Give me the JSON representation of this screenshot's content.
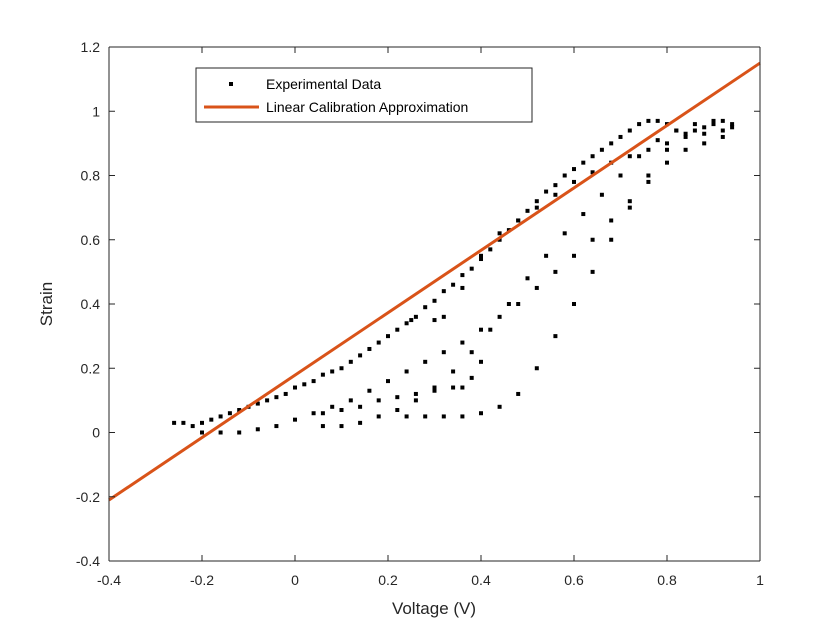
{
  "chart_data": {
    "type": "scatter",
    "xlabel": "Voltage (V)",
    "ylabel": "Strain",
    "xlim": [
      -0.4,
      1.0
    ],
    "ylim": [
      -0.4,
      1.2
    ],
    "xticks": [
      "-0.4",
      "-0.2",
      "0",
      "0.2",
      "0.4",
      "0.6",
      "0.8",
      "1"
    ],
    "yticks": [
      "-0.4",
      "-0.2",
      "0",
      "0.2",
      "0.4",
      "0.6",
      "0.8",
      "1",
      "1.2"
    ],
    "grid": false,
    "legend": {
      "placement": "top-left"
    },
    "series": [
      {
        "name": "Experimental Data",
        "kind": "scatter",
        "marker": "square",
        "color": "#000000",
        "x": [
          -0.26,
          -0.24,
          -0.22,
          -0.2,
          -0.18,
          -0.16,
          -0.14,
          -0.12,
          -0.1,
          -0.08,
          -0.06,
          -0.04,
          -0.02,
          0.0,
          0.02,
          0.04,
          0.06,
          0.08,
          0.1,
          0.12,
          0.14,
          0.16,
          0.18,
          0.2,
          0.22,
          0.24,
          0.26,
          0.28,
          0.3,
          0.32,
          0.34,
          0.36,
          0.38,
          0.4,
          0.42,
          0.44,
          0.46,
          0.48,
          0.5,
          0.52,
          0.54,
          0.56,
          0.58,
          0.6,
          0.62,
          0.64,
          0.66,
          0.68,
          0.7,
          0.72,
          0.74,
          0.76,
          0.78,
          0.8,
          0.82,
          0.84,
          0.86,
          0.88,
          0.9,
          0.92,
          0.94,
          -0.2,
          -0.16,
          -0.12,
          -0.08,
          -0.04,
          0.0,
          0.04,
          0.08,
          0.12,
          0.16,
          0.2,
          0.24,
          0.28,
          0.32,
          0.36,
          0.4,
          0.44,
          0.48,
          0.52,
          0.56,
          0.6,
          0.64,
          0.68,
          0.72,
          0.76,
          0.8,
          0.84,
          0.88,
          0.92,
          0.06,
          0.1,
          0.14,
          0.18,
          0.22,
          0.26,
          0.3,
          0.34,
          0.36,
          0.38,
          0.4,
          0.3,
          0.25,
          0.32,
          0.36,
          0.4,
          0.44,
          0.48,
          0.52,
          0.56,
          0.6,
          0.64,
          0.68,
          0.72,
          0.76,
          0.8,
          0.84,
          0.88,
          0.92,
          0.24,
          0.28,
          0.32,
          0.36,
          0.4,
          0.44,
          0.48,
          0.52,
          0.56,
          0.6,
          0.64,
          0.68,
          0.72,
          0.76,
          0.8,
          0.06,
          0.1,
          0.14,
          0.18,
          0.22,
          0.26,
          0.3,
          0.34,
          0.38,
          0.42,
          0.46,
          0.5,
          0.54,
          0.58,
          0.62,
          0.66,
          0.7,
          0.74,
          0.78,
          0.82,
          0.86,
          0.9,
          0.94
        ],
        "y": [
          0.03,
          0.03,
          0.02,
          0.03,
          0.04,
          0.05,
          0.06,
          0.07,
          0.08,
          0.09,
          0.1,
          0.11,
          0.12,
          0.14,
          0.15,
          0.16,
          0.18,
          0.19,
          0.2,
          0.22,
          0.24,
          0.26,
          0.28,
          0.3,
          0.32,
          0.34,
          0.36,
          0.39,
          0.41,
          0.44,
          0.46,
          0.49,
          0.51,
          0.54,
          0.57,
          0.6,
          0.63,
          0.66,
          0.69,
          0.72,
          0.75,
          0.77,
          0.8,
          0.82,
          0.84,
          0.86,
          0.88,
          0.9,
          0.92,
          0.94,
          0.96,
          0.97,
          0.97,
          0.96,
          0.94,
          0.93,
          0.94,
          0.95,
          0.96,
          0.97,
          0.95,
          0.0,
          0.0,
          0.0,
          0.01,
          0.02,
          0.04,
          0.06,
          0.08,
          0.1,
          0.13,
          0.16,
          0.19,
          0.22,
          0.25,
          0.28,
          0.32,
          0.36,
          0.4,
          0.45,
          0.5,
          0.55,
          0.6,
          0.66,
          0.72,
          0.78,
          0.84,
          0.88,
          0.9,
          0.92,
          0.06,
          0.07,
          0.08,
          0.1,
          0.11,
          0.12,
          0.13,
          0.14,
          0.14,
          0.17,
          0.22,
          0.35,
          0.35,
          0.36,
          0.45,
          0.55,
          0.62,
          0.66,
          0.7,
          0.74,
          0.78,
          0.81,
          0.84,
          0.86,
          0.88,
          0.9,
          0.92,
          0.93,
          0.94,
          0.05,
          0.05,
          0.05,
          0.05,
          0.06,
          0.08,
          0.12,
          0.2,
          0.3,
          0.4,
          0.5,
          0.6,
          0.7,
          0.8,
          0.88,
          0.02,
          0.02,
          0.03,
          0.05,
          0.07,
          0.1,
          0.14,
          0.19,
          0.25,
          0.32,
          0.4,
          0.48,
          0.55,
          0.62,
          0.68,
          0.74,
          0.8,
          0.86,
          0.91,
          0.94,
          0.96,
          0.97,
          0.96
        ]
      },
      {
        "name": "Linear Calibration Approximation",
        "kind": "line",
        "color": "#D95319",
        "x": [
          -0.4,
          1.0
        ],
        "y": [
          -0.21,
          1.15
        ]
      }
    ]
  }
}
